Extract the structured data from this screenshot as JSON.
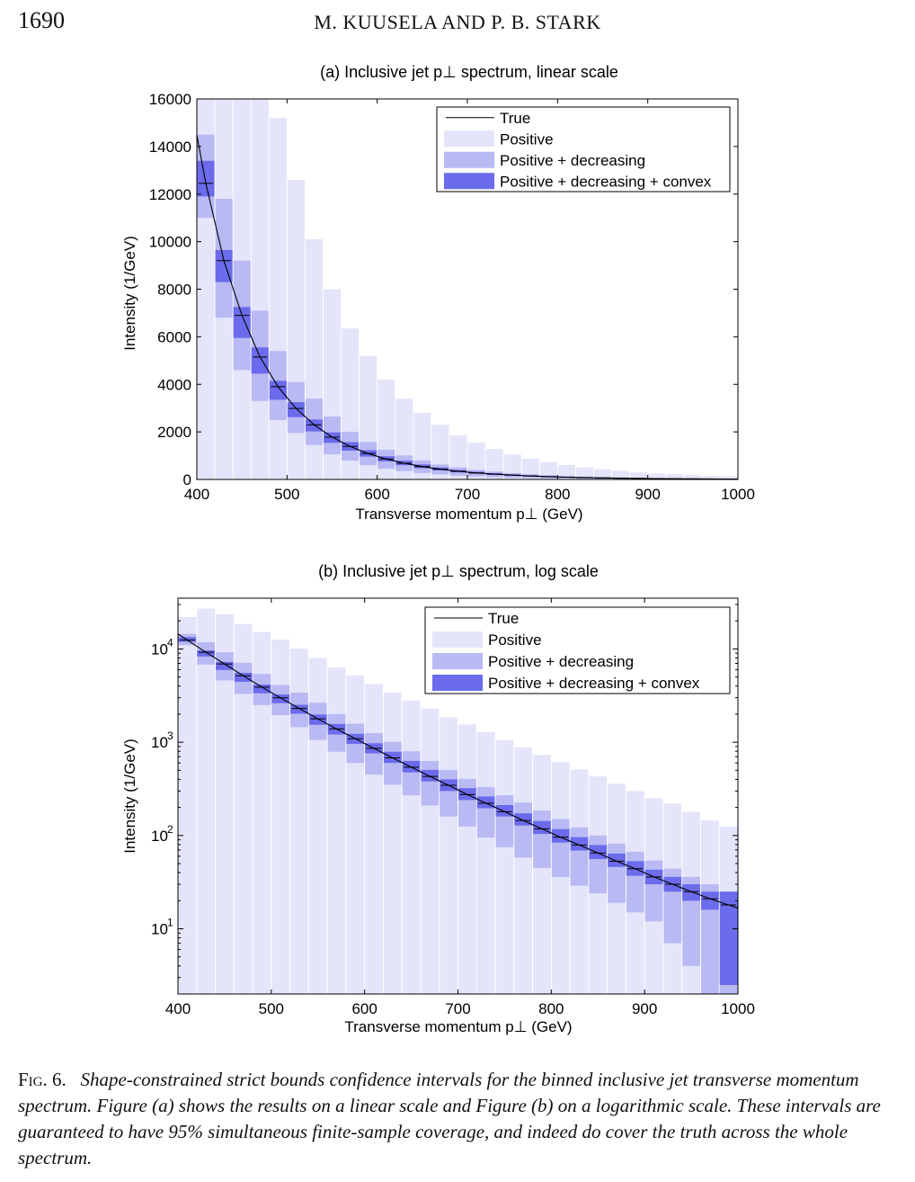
{
  "page_number": "1690",
  "running_head": "M. KUUSELA AND P. B. STARK",
  "caption": {
    "label": "Fig. 6.",
    "text": "Shape-constrained strict bounds confidence intervals for the binned inclusive jet transverse momentum spectrum. Figure (a) shows the results on a linear scale and Figure (b) on a logarithmic scale. These intervals are guaranteed to have 95% simultaneous finite-sample coverage, and indeed do cover the truth across the whole spectrum."
  },
  "colors": {
    "positive": "#e4e4fa",
    "positive_decreasing": "#b9b9f4",
    "positive_decreasing_convex": "#6b6bec",
    "true_line": "#000000"
  },
  "chart_data": [
    {
      "type": "bar",
      "title": "(a) Inclusive jet p⊥ spectrum, linear scale",
      "xlabel": "Transverse momentum p⊥ (GeV)",
      "ylabel": "Intensity (1/GeV)",
      "xlim": [
        400,
        1000
      ],
      "ylim": [
        0,
        16000
      ],
      "yscale": "linear",
      "x_ticks": [
        400,
        500,
        600,
        700,
        800,
        900,
        1000
      ],
      "y_ticks": [
        0,
        2000,
        4000,
        6000,
        8000,
        10000,
        12000,
        14000,
        16000
      ],
      "legend": [
        "True",
        "Positive",
        "Positive + decreasing",
        "Positive + decreasing + convex"
      ],
      "legend_position": "top-right"
    },
    {
      "type": "bar",
      "title": "(b) Inclusive jet p⊥ spectrum, log scale",
      "xlabel": "Transverse momentum p⊥ (GeV)",
      "ylabel": "Intensity (1/GeV)",
      "xlim": [
        400,
        1000
      ],
      "ylim": [
        2,
        35000
      ],
      "yscale": "log",
      "x_ticks": [
        400,
        500,
        600,
        700,
        800,
        900,
        1000
      ],
      "y_ticks": [
        10,
        100,
        1000,
        10000
      ],
      "y_tick_labels": [
        "10^1",
        "10^2",
        "10^3",
        "10^4"
      ],
      "legend": [
        "True",
        "Positive",
        "Positive + decreasing",
        "Positive + decreasing + convex"
      ],
      "legend_position": "top-right"
    }
  ],
  "bins": {
    "bin_edges": [
      400,
      420,
      440,
      460,
      480,
      500,
      520,
      540,
      560,
      580,
      600,
      620,
      640,
      660,
      680,
      700,
      720,
      740,
      760,
      780,
      800,
      820,
      840,
      860,
      880,
      900,
      920,
      940,
      960,
      980,
      1000
    ],
    "true_values": [
      12450,
      9200,
      6900,
      5150,
      3900,
      2990,
      2300,
      1780,
      1390,
      1090,
      860,
      680,
      540,
      430,
      345,
      275,
      222,
      180,
      145,
      118,
      96,
      79,
      65,
      53,
      44,
      36,
      30,
      25,
      21,
      18
    ],
    "positive": {
      "lower": [
        0,
        0,
        0,
        0,
        0,
        0,
        0,
        0,
        0,
        0,
        0,
        0,
        0,
        0,
        0,
        0,
        0,
        0,
        0,
        0,
        0,
        0,
        0,
        0,
        0,
        0,
        0,
        0,
        0,
        0
      ],
      "upper": [
        22000,
        27000,
        23500,
        18500,
        15200,
        12600,
        10100,
        8000,
        6350,
        5200,
        4200,
        3400,
        2800,
        2300,
        1850,
        1550,
        1280,
        1050,
        880,
        730,
        610,
        510,
        430,
        360,
        300,
        250,
        220,
        180,
        145,
        125
      ]
    },
    "positive_decreasing": {
      "lower": [
        11000,
        6800,
        4600,
        3300,
        2500,
        1950,
        1450,
        1060,
        790,
        600,
        450,
        350,
        270,
        210,
        160,
        125,
        95,
        75,
        58,
        45,
        36,
        29,
        24,
        19,
        15,
        12,
        7,
        4,
        2,
        0
      ],
      "upper": [
        14500,
        11800,
        9200,
        7100,
        5400,
        4100,
        3400,
        2650,
        2000,
        1580,
        1250,
        1010,
        800,
        630,
        505,
        405,
        330,
        270,
        225,
        185,
        150,
        122,
        100,
        82,
        67,
        54,
        44,
        36,
        30,
        25
      ]
    },
    "positive_decreasing_convex": {
      "lower": [
        11900,
        8300,
        5950,
        4450,
        3350,
        2620,
        2020,
        1540,
        1210,
        960,
        760,
        600,
        475,
        380,
        300,
        240,
        196,
        160,
        128,
        104,
        84,
        69,
        56,
        46,
        37,
        30,
        25,
        20,
        16,
        2.5
      ],
      "upper": [
        13400,
        9650,
        7250,
        5550,
        4150,
        3250,
        2520,
        1980,
        1570,
        1230,
        975,
        790,
        630,
        505,
        400,
        322,
        262,
        212,
        173,
        143,
        117,
        96,
        79,
        64,
        53,
        43,
        36,
        30,
        25,
        25
      ]
    }
  }
}
